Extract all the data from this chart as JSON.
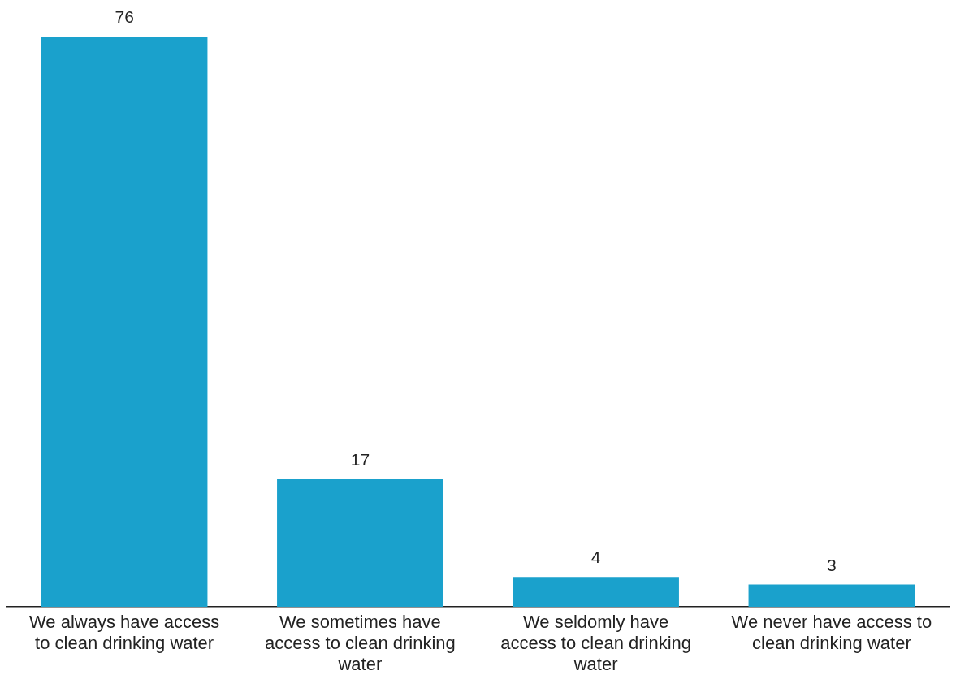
{
  "chart_data": {
    "type": "bar",
    "categories": [
      "We always have access to clean drinking water",
      "We sometimes have access to clean drinking water",
      "We seldomly have access to clean drinking water",
      "We never have access to clean drinking water"
    ],
    "values": [
      76,
      17,
      4,
      3
    ],
    "color": "#1aa1cc",
    "data_labels": true
  }
}
